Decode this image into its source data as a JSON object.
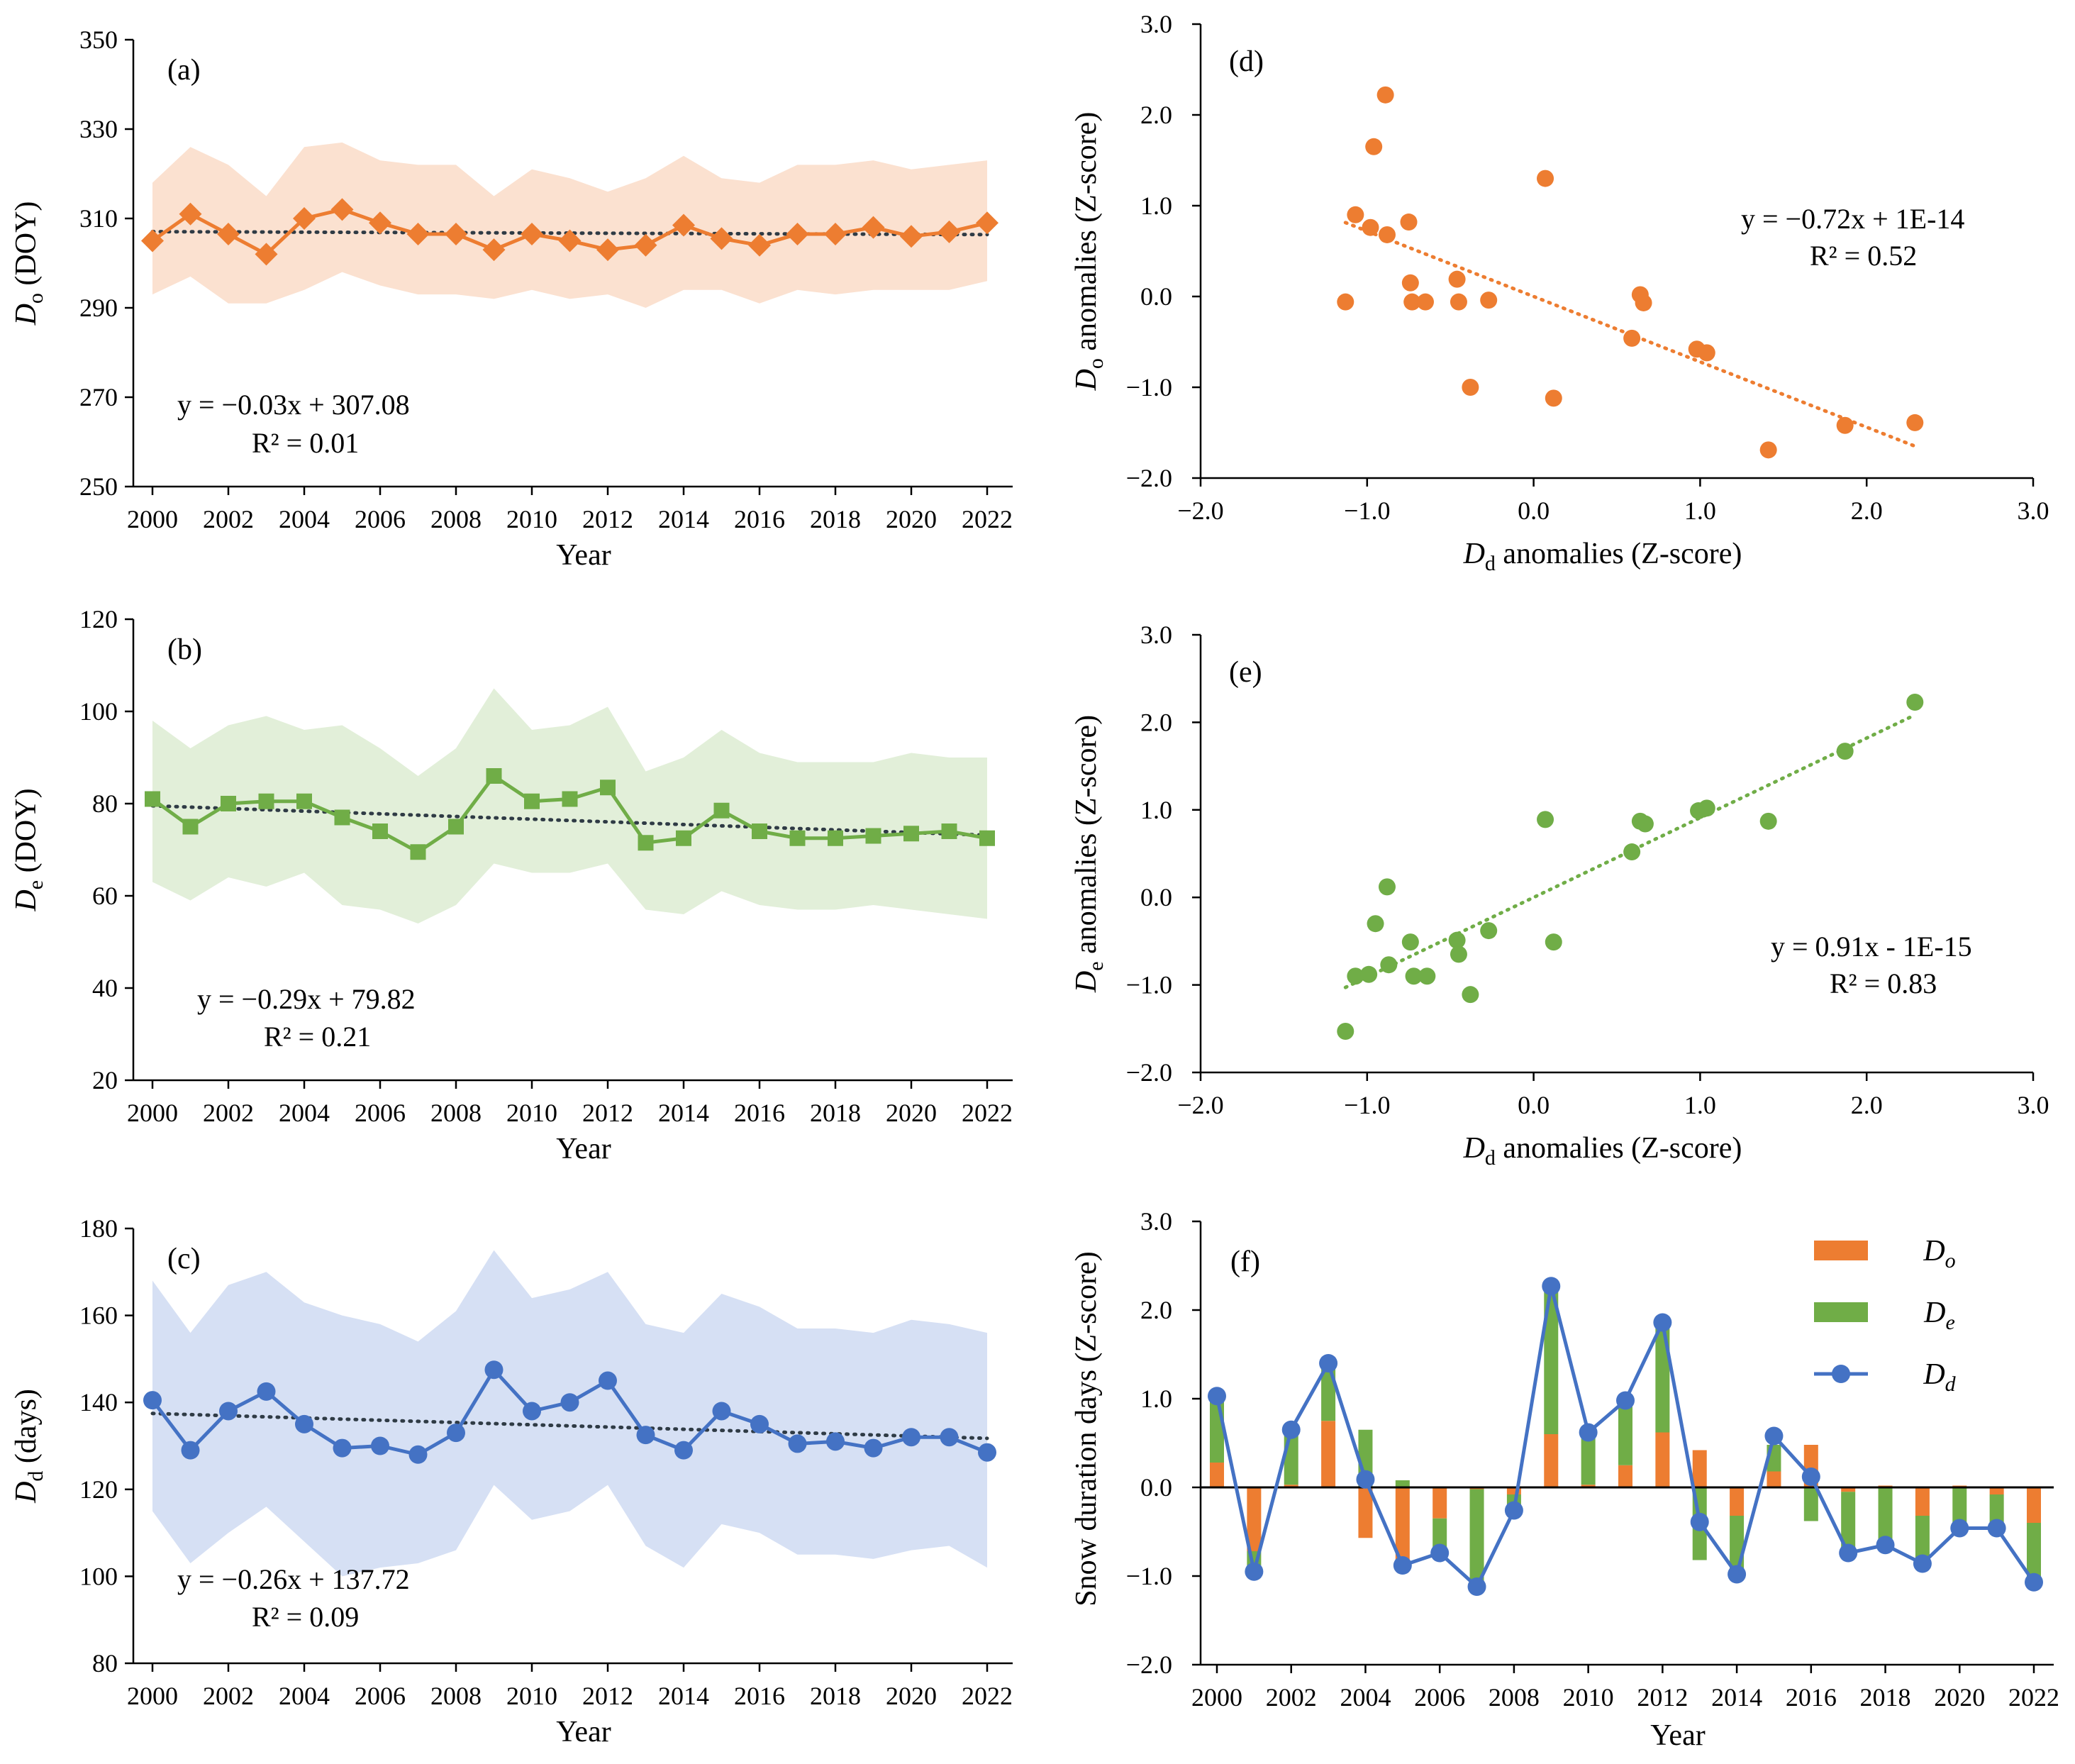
{
  "chart_data": [
    {
      "id": "a",
      "type": "line",
      "panel_label": "(a)",
      "color": "#ED7D31",
      "band_color": "#FBE1D0",
      "marker": "diamond",
      "xlabel": "Year",
      "ylabel_main": "D",
      "ylabel_sub": "o",
      "ylabel_rest": " (DOY)",
      "xlim": [
        2000,
        2022
      ],
      "ylim": [
        250,
        350
      ],
      "yticks": [
        "250",
        "270",
        "290",
        "310",
        "330",
        "350"
      ],
      "xticks": [
        "2000",
        "2002",
        "2004",
        "2006",
        "2008",
        "2010",
        "2012",
        "2014",
        "2016",
        "2018",
        "2020",
        "2022"
      ],
      "x": [
        2000,
        2001,
        2002,
        2003,
        2004,
        2005,
        2006,
        2007,
        2008,
        2009,
        2010,
        2011,
        2012,
        2013,
        2014,
        2015,
        2016,
        2017,
        2018,
        2019,
        2020,
        2021,
        2022
      ],
      "values": [
        305,
        311,
        306.5,
        302,
        310,
        312,
        309,
        306.5,
        306.5,
        303,
        306.5,
        305,
        303,
        304,
        308.5,
        305.5,
        304,
        306.5,
        306.5,
        308,
        306,
        307,
        309
      ],
      "upper": [
        318,
        326,
        322,
        315,
        326,
        327,
        323,
        322,
        322,
        315,
        321,
        319,
        316,
        319,
        324,
        319,
        318,
        322,
        322,
        323,
        321,
        322,
        323
      ],
      "lower": [
        293,
        297,
        291,
        291,
        294,
        298,
        295,
        293,
        293,
        292,
        294,
        292,
        293,
        290,
        294,
        294,
        291,
        294,
        293,
        294,
        294,
        294,
        296
      ],
      "trend": {
        "slope": -0.03,
        "intercept": 307.08
      },
      "equation": "y = −0.03x + 307.08",
      "r2": "R² = 0.01"
    },
    {
      "id": "b",
      "type": "line",
      "panel_label": "(b)",
      "color": "#70AD47",
      "band_color": "#E2EFD9",
      "marker": "square",
      "xlabel": "Year",
      "ylabel_main": "D",
      "ylabel_sub": "e",
      "ylabel_rest": " (DOY)",
      "xlim": [
        2000,
        2022
      ],
      "ylim": [
        20,
        120
      ],
      "yticks": [
        "20",
        "40",
        "60",
        "80",
        "100",
        "120"
      ],
      "xticks": [
        "2000",
        "2002",
        "2004",
        "2006",
        "2008",
        "2010",
        "2012",
        "2014",
        "2016",
        "2018",
        "2020",
        "2022"
      ],
      "x": [
        2000,
        2001,
        2002,
        2003,
        2004,
        2005,
        2006,
        2007,
        2008,
        2009,
        2010,
        2011,
        2012,
        2013,
        2014,
        2015,
        2016,
        2017,
        2018,
        2019,
        2020,
        2021,
        2022
      ],
      "values": [
        81,
        75,
        80,
        80.5,
        80.5,
        77,
        74,
        69.5,
        75,
        86,
        80.5,
        81,
        83.5,
        71.5,
        72.5,
        78.5,
        74,
        72.5,
        72.5,
        73,
        73.5,
        74,
        72.5
      ],
      "upper": [
        98,
        92,
        97,
        99,
        96,
        97,
        92,
        86,
        92,
        105,
        96,
        97,
        101,
        87,
        90,
        96,
        91,
        89,
        89,
        89,
        91,
        90,
        90
      ],
      "lower": [
        63,
        59,
        64,
        62,
        65,
        58,
        57,
        54,
        58,
        67,
        65,
        65,
        67,
        57,
        56,
        61,
        58,
        57,
        57,
        58,
        57,
        56,
        55
      ],
      "trend": {
        "slope": -0.29,
        "intercept": 79.82
      },
      "equation": "y = −0.29x + 79.82",
      "r2": "R² = 0.21"
    },
    {
      "id": "c",
      "type": "line",
      "panel_label": "(c)",
      "color": "#4472C4",
      "band_color": "#D6E0F4",
      "marker": "circle",
      "xlabel": "Year",
      "ylabel_main": "D",
      "ylabel_sub": "d",
      "ylabel_rest": " (days)",
      "xlim": [
        2000,
        2022
      ],
      "ylim": [
        80,
        180
      ],
      "yticks": [
        "80",
        "100",
        "120",
        "140",
        "160",
        "180"
      ],
      "xticks": [
        "2000",
        "2002",
        "2004",
        "2006",
        "2008",
        "2010",
        "2012",
        "2014",
        "2016",
        "2018",
        "2020",
        "2022"
      ],
      "x": [
        2000,
        2001,
        2002,
        2003,
        2004,
        2005,
        2006,
        2007,
        2008,
        2009,
        2010,
        2011,
        2012,
        2013,
        2014,
        2015,
        2016,
        2017,
        2018,
        2019,
        2020,
        2021,
        2022
      ],
      "values": [
        140.5,
        129,
        138,
        142.5,
        135,
        129.5,
        130,
        128,
        133,
        147.5,
        138,
        140,
        145,
        132.5,
        129,
        138,
        135,
        130.5,
        131,
        129.5,
        132,
        132,
        128.5
      ],
      "upper": [
        168,
        156,
        167,
        170,
        163,
        160,
        158,
        154,
        161,
        175,
        164,
        166,
        170,
        158,
        156,
        165,
        162,
        157,
        157,
        156,
        159,
        158,
        156
      ],
      "lower": [
        115,
        103,
        110,
        116,
        108,
        100,
        102,
        103,
        106,
        121,
        113,
        115,
        121,
        107,
        102,
        112,
        110,
        105,
        105,
        104,
        106,
        107,
        102
      ],
      "trend": {
        "slope": -0.26,
        "intercept": 137.72
      },
      "equation": "y = −0.26x + 137.72",
      "r2": "R² = 0.09"
    },
    {
      "id": "d",
      "type": "scatter",
      "panel_label": "(d)",
      "color": "#ED7D31",
      "xlabel_main": "D",
      "xlabel_sub": "d",
      "xlabel_rest": " anomalies (Z-score)",
      "ylabel_main": "D",
      "ylabel_sub": "o",
      "ylabel_rest": " anomalies (Z-score)",
      "xlim": [
        -2,
        3
      ],
      "ylim": [
        -2,
        3
      ],
      "xticks": [
        "−2.0",
        "−1.0",
        "0.0",
        "1.0",
        "2.0",
        "3.0"
      ],
      "yticks": [
        "−2.0",
        "−1.0",
        "0.0",
        "1.0",
        "2.0",
        "3.0"
      ],
      "x": [
        -1.13,
        -1.07,
        -0.98,
        -0.96,
        -0.89,
        -0.88,
        -0.75,
        -0.74,
        -0.73,
        -0.65,
        -0.46,
        -0.45,
        -0.38,
        -0.27,
        0.07,
        0.12,
        0.59,
        0.64,
        0.66,
        0.98,
        1.04,
        1.41,
        1.87,
        2.29
      ],
      "y": [
        -0.06,
        0.9,
        0.76,
        1.65,
        2.22,
        0.68,
        0.82,
        0.15,
        -0.06,
        -0.06,
        0.19,
        -0.06,
        -1.0,
        -0.04,
        1.3,
        -1.12,
        -0.46,
        0.02,
        -0.07,
        -0.58,
        -0.62,
        -1.69,
        -1.42,
        -1.39
      ],
      "trend": {
        "slope": -0.72,
        "intercept": 0,
        "xrange": [
          -1.13,
          2.29
        ]
      },
      "equation": "y = −0.72x + 1E-14",
      "r2": "R² = 0.52"
    },
    {
      "id": "e",
      "type": "scatter",
      "panel_label": "(e)",
      "color": "#70AD47",
      "xlabel_main": "D",
      "xlabel_sub": "d",
      "xlabel_rest": " anomalies (Z-score)",
      "ylabel_main": "D",
      "ylabel_sub": "e",
      "ylabel_rest": " anomalies (Z-score)",
      "xlim": [
        -2,
        3
      ],
      "ylim": [
        -2,
        3
      ],
      "xticks": [
        "−2.0",
        "−1.0",
        "0.0",
        "1.0",
        "2.0",
        "3.0"
      ],
      "yticks": [
        "−2.0",
        "−1.0",
        "0.0",
        "1.0",
        "2.0",
        "3.0"
      ],
      "x": [
        -1.13,
        -1.07,
        -0.99,
        -0.95,
        -0.88,
        -0.87,
        -0.74,
        -0.72,
        -0.64,
        -0.46,
        -0.45,
        -0.38,
        -0.27,
        0.07,
        0.12,
        0.59,
        0.64,
        0.67,
        0.99,
        1.04,
        1.41,
        1.87,
        2.29
      ],
      "y": [
        -1.53,
        -0.9,
        -0.88,
        -0.3,
        0.12,
        -0.77,
        -0.51,
        -0.9,
        -0.9,
        -0.49,
        -0.65,
        -1.11,
        -0.38,
        0.89,
        -0.51,
        0.52,
        0.87,
        0.84,
        0.99,
        1.02,
        0.87,
        1.67,
        2.23
      ],
      "trend": {
        "slope": 0.91,
        "intercept": 0,
        "xrange": [
          -1.13,
          2.29
        ]
      },
      "equation": "y = 0.91x - 1E-15",
      "r2": "R² = 0.83"
    },
    {
      "id": "f",
      "type": "bar",
      "panel_label": "(f)",
      "ylabel": "Snow duration days (Z-score)",
      "xlabel": "Year",
      "xlim": [
        2000,
        2022
      ],
      "ylim": [
        -2,
        3
      ],
      "yticks": [
        "−2.0",
        "−1.0",
        "0.0",
        "1.0",
        "2.0",
        "3.0"
      ],
      "xticks": [
        "2000",
        "2002",
        "2004",
        "2006",
        "2008",
        "2010",
        "2012",
        "2014",
        "2016",
        "2018",
        "2020",
        "2022"
      ],
      "categories": [
        2000,
        2001,
        2002,
        2003,
        2004,
        2005,
        2006,
        2007,
        2008,
        2009,
        2010,
        2011,
        2012,
        2013,
        2014,
        2015,
        2016,
        2017,
        2018,
        2019,
        2020,
        2021,
        2022
      ],
      "series": [
        {
          "name": "Do",
          "color": "#ED7D31",
          "values": [
            0.28,
            -0.72,
            0.03,
            0.75,
            -0.57,
            -0.82,
            -0.35,
            -0.02,
            -0.08,
            0.6,
            0.03,
            0.25,
            0.62,
            0.42,
            -0.32,
            0.18,
            0.48,
            -0.05,
            0.02,
            -0.32,
            0.02,
            -0.08,
            -0.4
          ]
        },
        {
          "name": "De",
          "color": "#70AD47",
          "values": [
            0.75,
            -0.25,
            0.6,
            0.65,
            0.65,
            0.08,
            -0.38,
            -1.1,
            -0.18,
            1.68,
            0.6,
            0.75,
            1.25,
            -0.82,
            -0.65,
            0.3,
            -0.38,
            -0.65,
            -0.65,
            -0.55,
            -0.46,
            -0.38,
            -0.65
          ]
        },
        {
          "name": "Dd",
          "color": "#4472C4",
          "values": [
            1.03,
            -0.95,
            0.65,
            1.4,
            0.09,
            -0.88,
            -0.74,
            -1.12,
            -0.26,
            2.27,
            0.62,
            0.98,
            1.86,
            -0.39,
            -0.98,
            0.58,
            0.12,
            -0.74,
            -0.65,
            -0.86,
            -0.46,
            -0.46,
            -1.07
          ]
        }
      ],
      "legend": [
        {
          "main": "D",
          "sub": "o"
        },
        {
          "main": "D",
          "sub": "e"
        },
        {
          "main": "D",
          "sub": "d"
        }
      ],
      "legend_position": "top-right"
    }
  ]
}
